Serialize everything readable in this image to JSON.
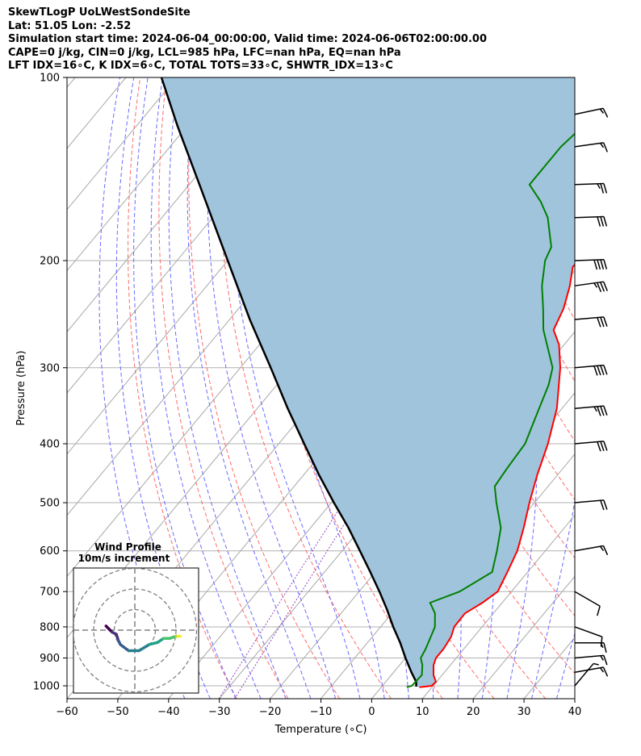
{
  "header": {
    "line1": "SkewTLogP UoLWestSondeSite",
    "line2": "Lat: 51.05   Lon: -2.52",
    "line3": "Simulation start time: 2024-06-04_00:00:00, Valid time: 2024-06-06T02:00:00.00",
    "line4": "CAPE=0 j/kg, CIN=0 j/kg, LCL=985 hPa, LFC=nan hPa, EQ=nan hPa",
    "line5": "LFT IDX=16∘C, K IDX=6∘C, TOTAL TOTS=33∘C, SHWTR_IDX=13∘C"
  },
  "chart_data": {
    "type": "line",
    "xlabel": "Temperature (∘C)",
    "ylabel": "Pressure (hPa)",
    "xlim": [
      -60,
      40
    ],
    "ylim_hpa": [
      1050,
      100
    ],
    "log_y": true,
    "x_ticks": [
      -60,
      -50,
      -40,
      -30,
      -20,
      -10,
      0,
      10,
      20,
      30,
      40
    ],
    "y_ticks": [
      100,
      200,
      300,
      400,
      500,
      600,
      700,
      800,
      900,
      1000
    ],
    "grid": true,
    "series": [
      {
        "role": "temperature",
        "color": "#ff0000",
        "points": [
          [
            1005,
            7.5
          ],
          [
            1000,
            9.7
          ],
          [
            985,
            9.9
          ],
          [
            960,
            8.3
          ],
          [
            925,
            6.7
          ],
          [
            900,
            6.0
          ],
          [
            870,
            6.0
          ],
          [
            830,
            5.5
          ],
          [
            800,
            4.5
          ],
          [
            760,
            4.4
          ],
          [
            730,
            6.1
          ],
          [
            700,
            7.3
          ],
          [
            650,
            6.0
          ],
          [
            600,
            4.5
          ],
          [
            550,
            2.0
          ],
          [
            500,
            -1.0
          ],
          [
            450,
            -4.0
          ],
          [
            400,
            -7.0
          ],
          [
            350,
            -11.0
          ],
          [
            300,
            -17.0
          ],
          [
            275,
            -21.0
          ],
          [
            260,
            -24.5
          ],
          [
            240,
            -26.0
          ],
          [
            220,
            -28.5
          ],
          [
            205,
            -31.0
          ],
          [
            200,
            -31.0
          ],
          [
            190,
            -32.0
          ],
          [
            180,
            -34.0
          ],
          [
            170,
            -35.5
          ],
          [
            160,
            -38.0
          ],
          [
            150,
            -41.0
          ],
          [
            135,
            -44.5
          ],
          [
            125,
            -48.5
          ],
          [
            115,
            -52.0
          ],
          [
            105,
            -54.5
          ],
          [
            100,
            -55.5
          ]
        ]
      },
      {
        "role": "dewpoint",
        "color": "#008000",
        "points": [
          [
            1005,
            5.0
          ],
          [
            1000,
            5.8
          ],
          [
            960,
            6.0
          ],
          [
            925,
            4.5
          ],
          [
            900,
            3.0
          ],
          [
            870,
            2.5
          ],
          [
            830,
            1.5
          ],
          [
            800,
            0.7
          ],
          [
            760,
            -1.5
          ],
          [
            730,
            -4.2
          ],
          [
            700,
            -0.2
          ],
          [
            650,
            3.0
          ],
          [
            600,
            0.5
          ],
          [
            550,
            -2.5
          ],
          [
            500,
            -7.5
          ],
          [
            470,
            -10.5
          ],
          [
            440,
            -11.0
          ],
          [
            400,
            -11.5
          ],
          [
            350,
            -14.5
          ],
          [
            320,
            -16.5
          ],
          [
            300,
            -18.5
          ],
          [
            260,
            -26.5
          ],
          [
            240,
            -30.0
          ],
          [
            220,
            -34.0
          ],
          [
            200,
            -37.5
          ],
          [
            190,
            -38.5
          ],
          [
            170,
            -44.0
          ],
          [
            160,
            -48.0
          ],
          [
            150,
            -53.0
          ],
          [
            130,
            -53.0
          ],
          [
            115,
            -51.5
          ],
          [
            100,
            -51.0
          ]
        ]
      },
      {
        "role": "parcel",
        "color": "#000000",
        "points": [
          [
            1003,
            6.8
          ],
          [
            985,
            6.0
          ],
          [
            950,
            3.5
          ],
          [
            900,
            0.0
          ],
          [
            850,
            -3.5
          ],
          [
            800,
            -7.5
          ],
          [
            750,
            -11.5
          ],
          [
            700,
            -16.0
          ],
          [
            650,
            -21.0
          ],
          [
            600,
            -26.5
          ],
          [
            550,
            -32.5
          ],
          [
            500,
            -39.5
          ],
          [
            450,
            -47.0
          ],
          [
            400,
            -55.0
          ],
          [
            350,
            -64.0
          ],
          [
            300,
            -74.0
          ],
          [
            250,
            -86.0
          ],
          [
            200,
            -100.0
          ],
          [
            150,
            -118.0
          ],
          [
            120,
            -132.0
          ],
          [
            100,
            -143.0
          ]
        ]
      }
    ],
    "cin_fill_color": "#a1c4dd",
    "wind_barbs": [
      {
        "p": 1000,
        "speed_kt": 5,
        "dir": 220
      },
      {
        "p": 950,
        "speed_kt": 15,
        "dir": 260
      },
      {
        "p": 900,
        "speed_kt": 15,
        "dir": 265
      },
      {
        "p": 850,
        "speed_kt": 15,
        "dir": 270
      },
      {
        "p": 800,
        "speed_kt": 10,
        "dir": 290
      },
      {
        "p": 700,
        "speed_kt": 10,
        "dir": 300
      },
      {
        "p": 600,
        "speed_kt": 15,
        "dir": 260
      },
      {
        "p": 500,
        "speed_kt": 20,
        "dir": 265
      },
      {
        "p": 400,
        "speed_kt": 30,
        "dir": 265
      },
      {
        "p": 350,
        "speed_kt": 35,
        "dir": 265
      },
      {
        "p": 300,
        "speed_kt": 40,
        "dir": 265
      },
      {
        "p": 250,
        "speed_kt": 30,
        "dir": 265
      },
      {
        "p": 220,
        "speed_kt": 35,
        "dir": 262
      },
      {
        "p": 200,
        "speed_kt": 40,
        "dir": 268
      },
      {
        "p": 170,
        "speed_kt": 30,
        "dir": 268
      },
      {
        "p": 150,
        "speed_kt": 25,
        "dir": 268
      },
      {
        "p": 130,
        "speed_kt": 15,
        "dir": 262
      },
      {
        "p": 115,
        "speed_kt": 15,
        "dir": 258
      }
    ],
    "hodograph": {
      "title": "Wind Profile",
      "subtitle": "10m/s increment",
      "ring_values": [
        10,
        20,
        30
      ],
      "points": [
        [
          -14,
          2
        ],
        [
          -12,
          0
        ],
        [
          -11,
          -1
        ],
        [
          -9,
          -2
        ],
        [
          -8,
          -5
        ],
        [
          -7,
          -7
        ],
        [
          -3,
          -10
        ],
        [
          2,
          -10
        ],
        [
          7,
          -7
        ],
        [
          11,
          -6
        ],
        [
          14,
          -4
        ],
        [
          17,
          -4
        ],
        [
          20,
          -3
        ],
        [
          20,
          -3
        ],
        [
          21,
          -3
        ],
        [
          22,
          -3
        ]
      ]
    }
  }
}
